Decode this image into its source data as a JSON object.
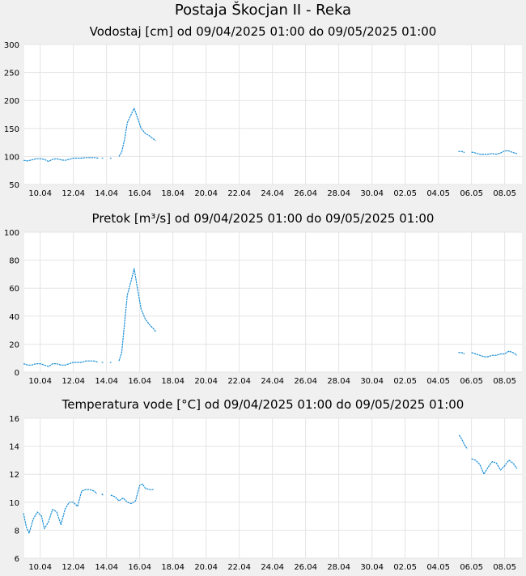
{
  "page": {
    "title": "Postaja Škocjan II - Reka"
  },
  "x_ticks": [
    "10.04",
    "12.04",
    "14.04",
    "16.04",
    "18.04",
    "20.04",
    "22.04",
    "24.04",
    "26.04",
    "28.04",
    "30.04",
    "02.05",
    "04.05",
    "06.05",
    "08.05"
  ],
  "colors": {
    "line": "#1a8fd6",
    "grid": "#e4e4e4",
    "plot_bg": "#ffffff",
    "page_bg": "#f0f0f0"
  },
  "chart_data": [
    {
      "type": "line",
      "title": "Vodostaj [cm] od 09/04/2025 01:00 do 09/05/2025 01:00",
      "x_range": [
        "2025-04-09 01:00",
        "2025-05-09 01:00"
      ],
      "ylim": [
        50,
        300
      ],
      "yticks": [
        "50",
        "100",
        "150",
        "200",
        "250",
        "300"
      ],
      "grid": true,
      "series": [
        {
          "points": [
            [
              "2025-04-09 00:00",
              93
            ],
            [
              "2025-04-09 06:00",
              92
            ],
            [
              "2025-04-09 12:00",
              94
            ],
            [
              "2025-04-09 18:00",
              96
            ],
            [
              "2025-04-10 00:00",
              96
            ],
            [
              "2025-04-10 06:00",
              95
            ],
            [
              "2025-04-10 12:00",
              91
            ],
            [
              "2025-04-10 18:00",
              95
            ],
            [
              "2025-04-11 00:00",
              96
            ],
            [
              "2025-04-11 06:00",
              94
            ],
            [
              "2025-04-11 12:00",
              93
            ],
            [
              "2025-04-11 18:00",
              95
            ],
            [
              "2025-04-12 00:00",
              97
            ],
            [
              "2025-04-12 06:00",
              97
            ],
            [
              "2025-04-12 12:00",
              97
            ],
            [
              "2025-04-12 18:00",
              98
            ],
            [
              "2025-04-13 00:00",
              98
            ],
            [
              "2025-04-13 06:00",
              98
            ],
            [
              "2025-04-13 12:00",
              97
            ]
          ]
        },
        {
          "points": [
            [
              "2025-04-13 17:00",
              97
            ],
            [
              "2025-04-13 19:00",
              97
            ]
          ]
        },
        {
          "points": [
            [
              "2025-04-14 05:00",
              97
            ],
            [
              "2025-04-14 07:00",
              97
            ]
          ]
        },
        {
          "points": [
            [
              "2025-04-14 18:00",
              100
            ],
            [
              "2025-04-14 22:00",
              108
            ],
            [
              "2025-04-15 02:00",
              130
            ],
            [
              "2025-04-15 06:00",
              160
            ],
            [
              "2025-04-15 12:00",
              176
            ],
            [
              "2025-04-15 16:00",
              186
            ],
            [
              "2025-04-15 20:00",
              172
            ],
            [
              "2025-04-16 02:00",
              150
            ],
            [
              "2025-04-16 08:00",
              141
            ],
            [
              "2025-04-16 14:00",
              137
            ],
            [
              "2025-04-16 20:00",
              131
            ],
            [
              "2025-04-16 23:00",
              128
            ]
          ]
        },
        {
          "points": [
            [
              "2025-05-05 05:00",
              109
            ],
            [
              "2025-05-05 10:00",
              109
            ],
            [
              "2025-05-05 14:00",
              107
            ]
          ]
        },
        {
          "points": [
            [
              "2025-05-06 00:00",
              108
            ],
            [
              "2025-05-06 06:00",
              106
            ],
            [
              "2025-05-06 12:00",
              104
            ],
            [
              "2025-05-06 18:00",
              104
            ],
            [
              "2025-05-07 00:00",
              104
            ],
            [
              "2025-05-07 06:00",
              105
            ],
            [
              "2025-05-07 12:00",
              104
            ],
            [
              "2025-05-07 18:00",
              106
            ],
            [
              "2025-05-08 00:00",
              110
            ],
            [
              "2025-05-08 06:00",
              110
            ],
            [
              "2025-05-08 12:00",
              107
            ],
            [
              "2025-05-08 18:00",
              105
            ]
          ]
        }
      ]
    },
    {
      "type": "line",
      "title": "Pretok [m³/s] od 09/04/2025 01:00 do 09/05/2025 01:00",
      "x_range": [
        "2025-04-09 01:00",
        "2025-05-09 01:00"
      ],
      "ylim": [
        0,
        100
      ],
      "yticks": [
        "0",
        "20",
        "40",
        "60",
        "80",
        "100"
      ],
      "grid": true,
      "series": [
        {
          "points": [
            [
              "2025-04-09 00:00",
              6
            ],
            [
              "2025-04-09 06:00",
              5
            ],
            [
              "2025-04-09 12:00",
              5
            ],
            [
              "2025-04-09 18:00",
              6
            ],
            [
              "2025-04-10 00:00",
              6
            ],
            [
              "2025-04-10 06:00",
              5
            ],
            [
              "2025-04-10 12:00",
              4
            ],
            [
              "2025-04-10 18:00",
              6
            ],
            [
              "2025-04-11 00:00",
              6
            ],
            [
              "2025-04-11 06:00",
              5
            ],
            [
              "2025-04-11 12:00",
              5
            ],
            [
              "2025-04-11 18:00",
              6
            ],
            [
              "2025-04-12 00:00",
              7
            ],
            [
              "2025-04-12 06:00",
              7
            ],
            [
              "2025-04-12 12:00",
              7
            ],
            [
              "2025-04-12 18:00",
              8
            ],
            [
              "2025-04-13 00:00",
              8
            ],
            [
              "2025-04-13 06:00",
              8
            ],
            [
              "2025-04-13 12:00",
              7
            ]
          ]
        },
        {
          "points": [
            [
              "2025-04-13 17:00",
              7
            ],
            [
              "2025-04-13 19:00",
              7
            ]
          ]
        },
        {
          "points": [
            [
              "2025-04-14 05:00",
              7
            ],
            [
              "2025-04-14 07:00",
              7
            ]
          ]
        },
        {
          "points": [
            [
              "2025-04-14 18:00",
              8
            ],
            [
              "2025-04-14 22:00",
              14
            ],
            [
              "2025-04-15 02:00",
              35
            ],
            [
              "2025-04-15 06:00",
              55
            ],
            [
              "2025-04-15 12:00",
              66
            ],
            [
              "2025-04-15 16:00",
              74
            ],
            [
              "2025-04-15 20:00",
              62
            ],
            [
              "2025-04-16 02:00",
              45
            ],
            [
              "2025-04-16 08:00",
              38
            ],
            [
              "2025-04-16 14:00",
              34
            ],
            [
              "2025-04-16 20:00",
              31
            ],
            [
              "2025-04-16 23:00",
              29
            ]
          ]
        },
        {
          "points": [
            [
              "2025-05-05 05:00",
              14
            ],
            [
              "2025-05-05 10:00",
              14
            ],
            [
              "2025-05-05 14:00",
              13
            ]
          ]
        },
        {
          "points": [
            [
              "2025-05-06 00:00",
              14
            ],
            [
              "2025-05-06 06:00",
              13
            ],
            [
              "2025-05-06 12:00",
              12
            ],
            [
              "2025-05-06 18:00",
              11
            ],
            [
              "2025-05-07 00:00",
              11
            ],
            [
              "2025-05-07 06:00",
              12
            ],
            [
              "2025-05-07 12:00",
              12
            ],
            [
              "2025-05-07 18:00",
              13
            ],
            [
              "2025-05-08 00:00",
              13
            ],
            [
              "2025-05-08 06:00",
              15
            ],
            [
              "2025-05-08 12:00",
              14
            ],
            [
              "2025-05-08 18:00",
              12
            ]
          ]
        }
      ]
    },
    {
      "type": "line",
      "title": "Temperatura vode [°C] od 09/04/2025 01:00 do 09/05/2025 01:00",
      "x_range": [
        "2025-04-09 01:00",
        "2025-05-09 01:00"
      ],
      "ylim": [
        6,
        16
      ],
      "yticks": [
        "6",
        "8",
        "10",
        "12",
        "14",
        "16"
      ],
      "grid": true,
      "series": [
        {
          "points": [
            [
              "2025-04-09 00:00",
              9.2
            ],
            [
              "2025-04-09 04:00",
              8.2
            ],
            [
              "2025-04-09 08:00",
              7.8
            ],
            [
              "2025-04-09 14:00",
              8.8
            ],
            [
              "2025-04-09 20:00",
              9.3
            ],
            [
              "2025-04-10 02:00",
              9.0
            ],
            [
              "2025-04-10 06:00",
              8.1
            ],
            [
              "2025-04-10 12:00",
              8.6
            ],
            [
              "2025-04-10 18:00",
              9.5
            ],
            [
              "2025-04-11 00:00",
              9.3
            ],
            [
              "2025-04-11 06:00",
              8.4
            ],
            [
              "2025-04-11 12:00",
              9.5
            ],
            [
              "2025-04-11 18:00",
              10.0
            ],
            [
              "2025-04-12 00:00",
              10.0
            ],
            [
              "2025-04-12 06:00",
              9.7
            ],
            [
              "2025-04-12 12:00",
              10.8
            ],
            [
              "2025-04-12 18:00",
              10.9
            ],
            [
              "2025-04-13 00:00",
              10.9
            ],
            [
              "2025-04-13 06:00",
              10.8
            ],
            [
              "2025-04-13 10:00",
              10.6
            ]
          ]
        },
        {
          "points": [
            [
              "2025-04-13 17:00",
              10.6
            ],
            [
              "2025-04-13 19:00",
              10.5
            ]
          ]
        },
        {
          "points": [
            [
              "2025-04-14 06:00",
              10.5
            ],
            [
              "2025-04-14 12:00",
              10.4
            ],
            [
              "2025-04-14 18:00",
              10.1
            ],
            [
              "2025-04-15 00:00",
              10.3
            ],
            [
              "2025-04-15 06:00",
              10.0
            ],
            [
              "2025-04-15 12:00",
              9.9
            ],
            [
              "2025-04-15 18:00",
              10.1
            ],
            [
              "2025-04-16 00:00",
              11.2
            ],
            [
              "2025-04-16 04:00",
              11.3
            ],
            [
              "2025-04-16 08:00",
              11.0
            ],
            [
              "2025-04-16 14:00",
              10.9
            ],
            [
              "2025-04-16 20:00",
              10.9
            ]
          ]
        },
        {
          "points": [
            [
              "2025-05-05 06:00",
              14.8
            ],
            [
              "2025-05-05 10:00",
              14.5
            ],
            [
              "2025-05-05 14:00",
              14.1
            ],
            [
              "2025-05-05 18:00",
              13.8
            ]
          ]
        },
        {
          "points": [
            [
              "2025-05-06 00:00",
              13.1
            ],
            [
              "2025-05-06 06:00",
              13.0
            ],
            [
              "2025-05-06 12:00",
              12.7
            ],
            [
              "2025-05-06 18:00",
              12.0
            ],
            [
              "2025-05-07 00:00",
              12.5
            ],
            [
              "2025-05-07 06:00",
              12.9
            ],
            [
              "2025-05-07 12:00",
              12.8
            ],
            [
              "2025-05-07 18:00",
              12.3
            ],
            [
              "2025-05-08 00:00",
              12.6
            ],
            [
              "2025-05-08 06:00",
              13.0
            ],
            [
              "2025-05-08 12:00",
              12.8
            ],
            [
              "2025-05-08 18:00",
              12.4
            ]
          ]
        }
      ]
    }
  ]
}
